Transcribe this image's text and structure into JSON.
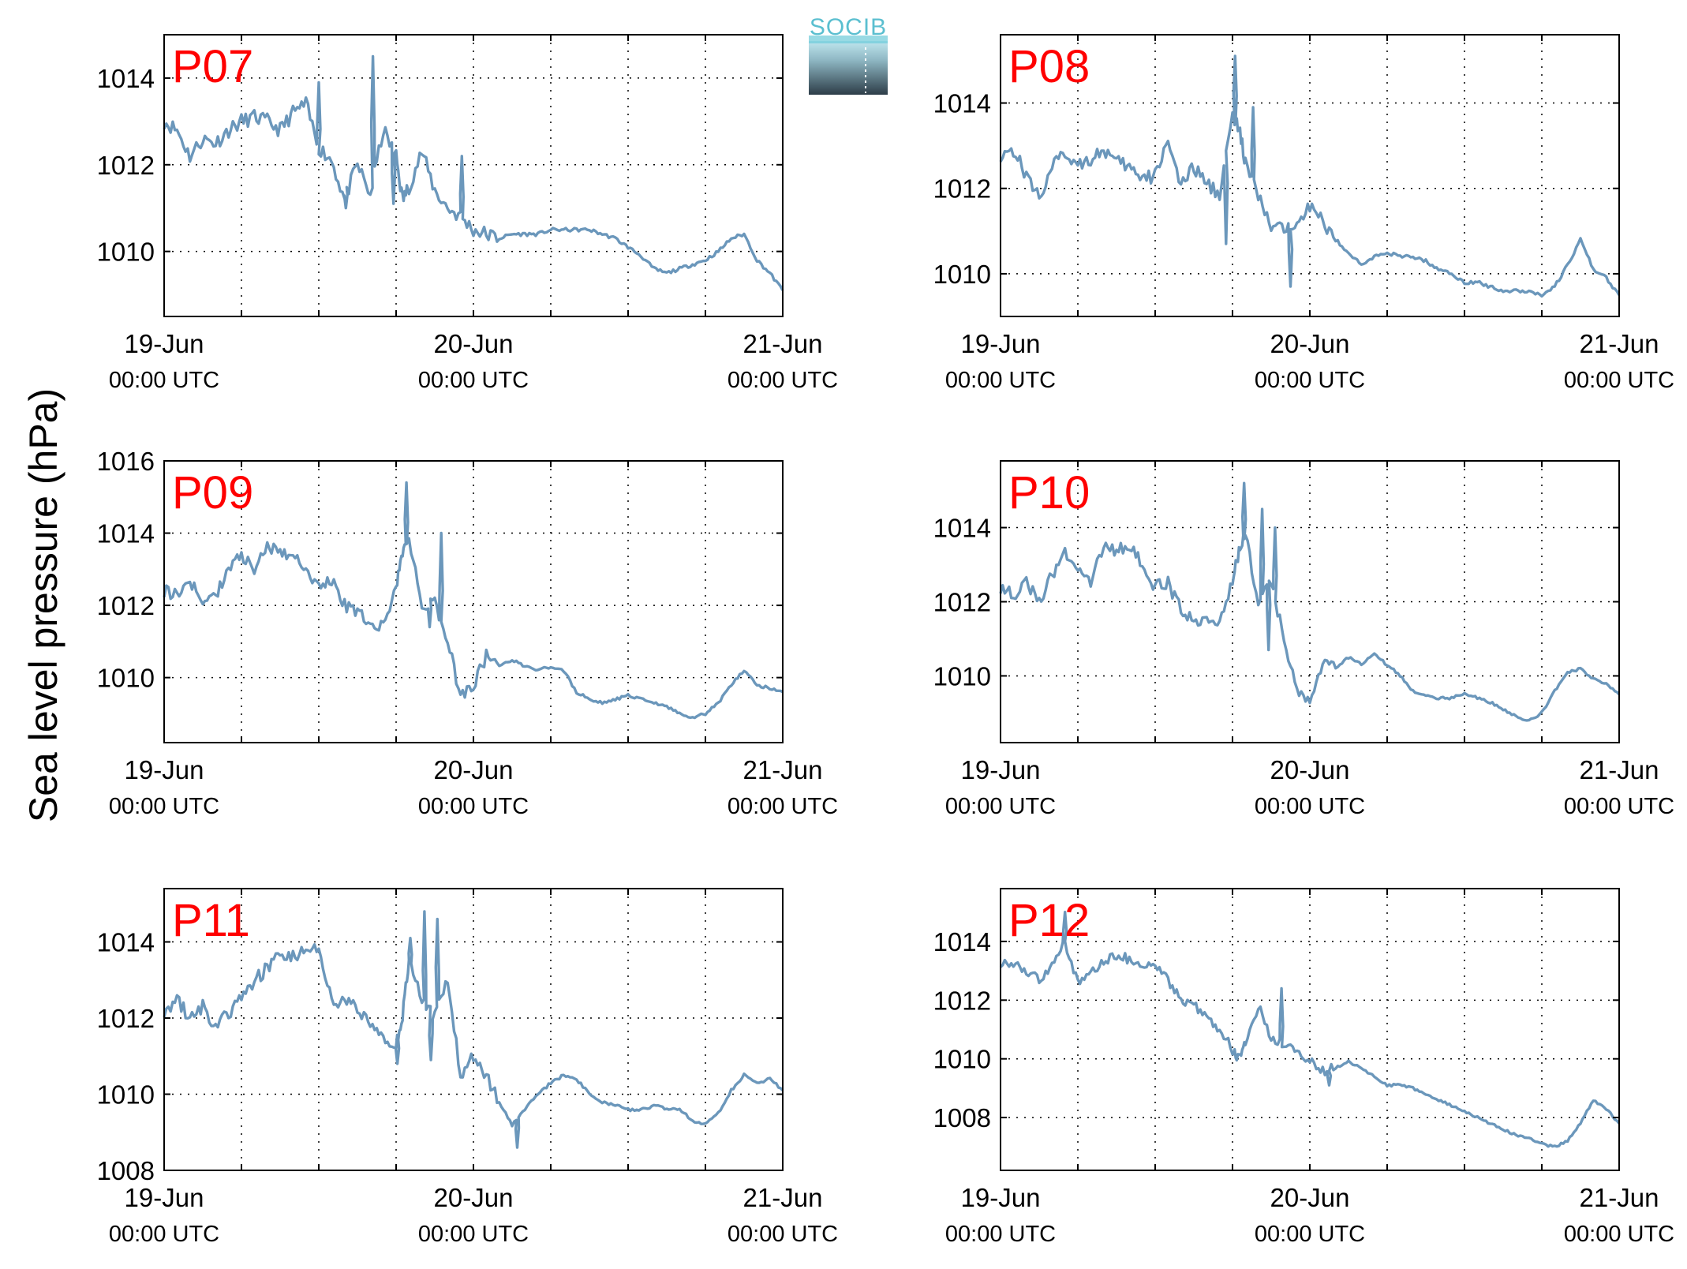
{
  "figure": {
    "ylabel": "Sea level pressure (hPa)",
    "logo_text": "SOCIB"
  },
  "colors": {
    "line": "#6b97bb",
    "station_label": "#ff0000",
    "grid": "#000000"
  },
  "chart_data": [
    {
      "type": "line",
      "station": "P07",
      "xlim": [
        0,
        48
      ],
      "ylim": [
        1008.5,
        1015
      ],
      "yticks": [
        1010,
        1012,
        1014
      ],
      "grid": true,
      "x": [
        0,
        1,
        2,
        3,
        4,
        5,
        6,
        7,
        8,
        9,
        10,
        11,
        12,
        13,
        14,
        15,
        16,
        17,
        18,
        18.5,
        19,
        20,
        21,
        22,
        23,
        24,
        25,
        26,
        27,
        28,
        29,
        30,
        31,
        32,
        33,
        34,
        35,
        36,
        37,
        38,
        39,
        40,
        41,
        42,
        43,
        44,
        45,
        46,
        47,
        48
      ],
      "values": [
        1013.0,
        1012.8,
        1012.2,
        1012.6,
        1012.5,
        1012.8,
        1013.0,
        1013.1,
        1013.0,
        1012.8,
        1013.2,
        1013.4,
        1012.4,
        1012.1,
        1011.2,
        1012.0,
        1011.3,
        1012.8,
        1012.2,
        1011.2,
        1011.5,
        1012.3,
        1011.4,
        1011.0,
        1010.8,
        1010.5,
        1010.4,
        1010.3,
        1010.4,
        1010.4,
        1010.4,
        1010.5,
        1010.5,
        1010.5,
        1010.5,
        1010.4,
        1010.3,
        1010.1,
        1009.9,
        1009.6,
        1009.5,
        1009.6,
        1009.7,
        1009.8,
        1010.0,
        1010.3,
        1010.4,
        1009.8,
        1009.5,
        1009.1
      ],
      "spikes": [
        {
          "x": 12,
          "y": 1013.9
        },
        {
          "x": 16.2,
          "y": 1014.5
        },
        {
          "x": 14.1,
          "y": 1011.0
        },
        {
          "x": 17.8,
          "y": 1011.1
        },
        {
          "x": 23.1,
          "y": 1012.2
        }
      ],
      "xticks": [
        {
          "x": 0,
          "label": "19-Jun",
          "sub": "00:00 UTC"
        },
        {
          "x": 24,
          "label": "20-Jun",
          "sub": "00:00 UTC"
        },
        {
          "x": 48,
          "label": "21-Jun",
          "sub": "00:00 UTC"
        }
      ]
    },
    {
      "type": "line",
      "station": "P08",
      "xlim": [
        0,
        48
      ],
      "ylim": [
        1009,
        1015.6
      ],
      "yticks": [
        1010,
        1012,
        1014
      ],
      "grid": true,
      "x": [
        0,
        1,
        2,
        3,
        4,
        5,
        6,
        7,
        8,
        9,
        10,
        11,
        12,
        13,
        14,
        15,
        16,
        17,
        18,
        18.5,
        19,
        20,
        21,
        22,
        23,
        24,
        25,
        26,
        27,
        28,
        29,
        30,
        31,
        32,
        33,
        34,
        35,
        36,
        37,
        38,
        39,
        40,
        41,
        42,
        43,
        44,
        45,
        46,
        47,
        48
      ],
      "values": [
        1012.8,
        1012.9,
        1012.3,
        1011.8,
        1012.5,
        1012.8,
        1012.6,
        1012.7,
        1012.9,
        1012.6,
        1012.5,
        1012.2,
        1012.3,
        1013.2,
        1012.0,
        1012.5,
        1012.1,
        1011.9,
        1013.7,
        1013.4,
        1012.6,
        1011.8,
        1011.1,
        1011.0,
        1011.3,
        1011.6,
        1011.2,
        1010.8,
        1010.5,
        1010.2,
        1010.4,
        1010.5,
        1010.4,
        1010.4,
        1010.3,
        1010.1,
        1010.0,
        1009.8,
        1009.8,
        1009.7,
        1009.6,
        1009.6,
        1009.6,
        1009.5,
        1009.7,
        1010.2,
        1010.8,
        1010.1,
        1009.9,
        1009.5
      ],
      "spikes": [
        {
          "x": 17.5,
          "y": 1010.7
        },
        {
          "x": 18.2,
          "y": 1015.1
        },
        {
          "x": 22.5,
          "y": 1009.7
        },
        {
          "x": 19.6,
          "y": 1013.9
        }
      ],
      "xticks": [
        {
          "x": 0,
          "label": "19-Jun",
          "sub": "00:00 UTC"
        },
        {
          "x": 24,
          "label": "20-Jun",
          "sub": "00:00 UTC"
        },
        {
          "x": 48,
          "label": "21-Jun",
          "sub": "00:00 UTC"
        }
      ]
    },
    {
      "type": "line",
      "station": "P09",
      "xlim": [
        0,
        48
      ],
      "ylim": [
        1008.2,
        1016
      ],
      "yticks": [
        1010,
        1012,
        1014,
        1016
      ],
      "grid": true,
      "x": [
        0,
        1,
        2,
        3,
        4,
        5,
        6,
        7,
        8,
        9,
        10,
        11,
        12,
        13,
        14,
        15,
        16,
        17,
        18,
        18.5,
        19,
        20,
        21,
        22,
        23,
        24,
        25,
        26,
        27,
        28,
        29,
        30,
        31,
        32,
        33,
        34,
        35,
        36,
        37,
        38,
        39,
        40,
        41,
        42,
        43,
        44,
        45,
        46,
        47,
        48
      ],
      "values": [
        1012.4,
        1012.3,
        1012.7,
        1012.0,
        1012.3,
        1013.0,
        1013.4,
        1013.0,
        1013.6,
        1013.5,
        1013.4,
        1013.0,
        1012.5,
        1012.7,
        1012.0,
        1011.8,
        1011.5,
        1011.4,
        1012.5,
        1013.5,
        1013.8,
        1012.0,
        1012.1,
        1011.0,
        1009.5,
        1009.8,
        1010.6,
        1010.3,
        1010.5,
        1010.3,
        1010.2,
        1010.3,
        1010.2,
        1009.6,
        1009.4,
        1009.3,
        1009.4,
        1009.5,
        1009.4,
        1009.3,
        1009.2,
        1009.0,
        1008.9,
        1009.0,
        1009.3,
        1009.8,
        1010.2,
        1009.8,
        1009.7,
        1009.6
      ],
      "spikes": [
        {
          "x": 18.8,
          "y": 1015.4
        },
        {
          "x": 20.6,
          "y": 1011.4
        },
        {
          "x": 21.5,
          "y": 1014.0
        }
      ],
      "xticks": [
        {
          "x": 0,
          "label": "19-Jun",
          "sub": "00:00 UTC"
        },
        {
          "x": 24,
          "label": "20-Jun",
          "sub": "00:00 UTC"
        },
        {
          "x": 48,
          "label": "21-Jun",
          "sub": "00:00 UTC"
        }
      ]
    },
    {
      "type": "line",
      "station": "P10",
      "xlim": [
        0,
        48
      ],
      "ylim": [
        1008.2,
        1015.8
      ],
      "yticks": [
        1010,
        1012,
        1014
      ],
      "grid": true,
      "x": [
        0,
        1,
        2,
        3,
        4,
        5,
        6,
        7,
        8,
        9,
        10,
        11,
        12,
        13,
        14,
        15,
        16,
        17,
        18,
        18.5,
        19,
        20,
        21,
        22,
        23,
        24,
        25,
        26,
        27,
        28,
        29,
        30,
        31,
        32,
        33,
        34,
        35,
        36,
        37,
        38,
        39,
        40,
        41,
        42,
        43,
        44,
        45,
        46,
        47,
        48
      ],
      "values": [
        1012.4,
        1012.2,
        1012.5,
        1012.0,
        1012.7,
        1013.3,
        1013.0,
        1012.5,
        1013.5,
        1013.4,
        1013.5,
        1013.0,
        1012.4,
        1012.5,
        1011.8,
        1011.5,
        1011.6,
        1011.4,
        1012.5,
        1013.4,
        1013.8,
        1012.0,
        1012.5,
        1011.0,
        1009.5,
        1009.4,
        1010.4,
        1010.2,
        1010.5,
        1010.3,
        1010.6,
        1010.3,
        1010.0,
        1009.6,
        1009.5,
        1009.4,
        1009.4,
        1009.5,
        1009.4,
        1009.3,
        1009.1,
        1008.9,
        1008.8,
        1009.0,
        1009.6,
        1010.1,
        1010.2,
        1009.9,
        1009.8,
        1009.5
      ],
      "spikes": [
        {
          "x": 18.9,
          "y": 1015.2
        },
        {
          "x": 20.3,
          "y": 1014.5
        },
        {
          "x": 20.8,
          "y": 1010.7
        },
        {
          "x": 21.3,
          "y": 1014.0
        }
      ],
      "xticks": [
        {
          "x": 0,
          "label": "19-Jun",
          "sub": "00:00 UTC"
        },
        {
          "x": 24,
          "label": "20-Jun",
          "sub": "00:00 UTC"
        },
        {
          "x": 48,
          "label": "21-Jun",
          "sub": "00:00 UTC"
        }
      ]
    },
    {
      "type": "line",
      "station": "P11",
      "xlim": [
        0,
        48
      ],
      "ylim": [
        1008,
        1015.4
      ],
      "yticks": [
        1008,
        1010,
        1012,
        1014
      ],
      "grid": true,
      "x": [
        0,
        1,
        2,
        3,
        4,
        5,
        6,
        7,
        8,
        9,
        10,
        11,
        12,
        13,
        14,
        15,
        16,
        17,
        18,
        18.5,
        19,
        20,
        21,
        22,
        23,
        24,
        25,
        26,
        27,
        28,
        29,
        30,
        31,
        32,
        33,
        34,
        35,
        36,
        37,
        38,
        39,
        40,
        41,
        42,
        43,
        44,
        45,
        46,
        47,
        48
      ],
      "values": [
        1012.2,
        1012.5,
        1012.0,
        1012.3,
        1011.8,
        1012.1,
        1012.5,
        1013.0,
        1013.3,
        1013.7,
        1013.6,
        1013.9,
        1013.8,
        1012.4,
        1012.5,
        1012.3,
        1011.8,
        1011.5,
        1011.3,
        1012.0,
        1013.6,
        1012.5,
        1012.0,
        1013.0,
        1010.5,
        1011.0,
        1010.5,
        1009.8,
        1009.2,
        1009.6,
        1010.0,
        1010.3,
        1010.5,
        1010.4,
        1010.0,
        1009.8,
        1009.7,
        1009.6,
        1009.6,
        1009.7,
        1009.6,
        1009.6,
        1009.3,
        1009.2,
        1009.5,
        1010.1,
        1010.5,
        1010.3,
        1010.4,
        1010.1
      ],
      "spikes": [
        {
          "x": 18.1,
          "y": 1010.8
        },
        {
          "x": 19.1,
          "y": 1014.1
        },
        {
          "x": 20.2,
          "y": 1014.8
        },
        {
          "x": 20.7,
          "y": 1010.9
        },
        {
          "x": 21.2,
          "y": 1014.6
        },
        {
          "x": 27.4,
          "y": 1008.6
        }
      ],
      "xticks": [
        {
          "x": 0,
          "label": "19-Jun",
          "sub": "00:00 UTC"
        },
        {
          "x": 24,
          "label": "20-Jun",
          "sub": "00:00 UTC"
        },
        {
          "x": 48,
          "label": "21-Jun",
          "sub": "00:00 UTC"
        }
      ]
    },
    {
      "type": "line",
      "station": "P12",
      "xlim": [
        0,
        48
      ],
      "ylim": [
        1006.2,
        1015.8
      ],
      "yticks": [
        1008,
        1010,
        1012,
        1014
      ],
      "grid": true,
      "x": [
        0,
        1,
        2,
        3,
        4,
        5,
        6,
        7,
        8,
        9,
        10,
        11,
        12,
        13,
        14,
        15,
        16,
        17,
        18,
        18.5,
        19,
        20,
        21,
        22,
        23,
        24,
        25,
        26,
        27,
        28,
        29,
        30,
        31,
        32,
        33,
        34,
        35,
        36,
        37,
        38,
        39,
        40,
        41,
        42,
        43,
        44,
        45,
        46,
        47,
        48
      ],
      "values": [
        1013.3,
        1013.2,
        1013.0,
        1012.7,
        1013.2,
        1014.0,
        1012.6,
        1013.0,
        1013.3,
        1013.5,
        1013.4,
        1013.3,
        1013.2,
        1012.7,
        1012.0,
        1011.8,
        1011.5,
        1011.0,
        1010.3,
        1010.0,
        1010.6,
        1011.8,
        1010.6,
        1010.5,
        1010.2,
        1010.0,
        1009.6,
        1009.7,
        1009.9,
        1009.7,
        1009.4,
        1009.1,
        1009.1,
        1009.0,
        1008.8,
        1008.6,
        1008.4,
        1008.2,
        1008.0,
        1007.8,
        1007.6,
        1007.4,
        1007.3,
        1007.1,
        1007.0,
        1007.2,
        1007.8,
        1008.6,
        1008.3,
        1007.8
      ],
      "spikes": [
        {
          "x": 5.0,
          "y": 1015.0
        },
        {
          "x": 21.8,
          "y": 1012.4
        },
        {
          "x": 25.5,
          "y": 1009.1
        }
      ],
      "xticks": [
        {
          "x": 0,
          "label": "19-Jun",
          "sub": "00:00 UTC"
        },
        {
          "x": 24,
          "label": "20-Jun",
          "sub": "00:00 UTC"
        },
        {
          "x": 48,
          "label": "21-Jun",
          "sub": "00:00 UTC"
        }
      ]
    }
  ]
}
